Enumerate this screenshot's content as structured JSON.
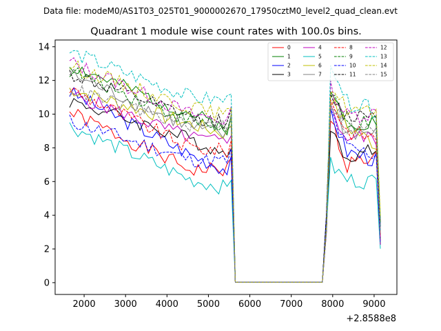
{
  "chart_data": {
    "type": "line",
    "suptitle": "Data file: modeM0/AS1T03_025T01_9000002670_17950cztM0_level2_quad_clean.evt",
    "title": "Quadrant 1 module wise count rates with 100.0s bins.",
    "offset_label": "+2.8588e8",
    "xlabel": "",
    "ylabel": "",
    "xlim": [
      1300,
      9550
    ],
    "ylim": [
      -0.7,
      14.4
    ],
    "xticks": [
      2000,
      3000,
      4000,
      5000,
      6000,
      7000,
      8000,
      9000
    ],
    "yticks": [
      0,
      2,
      4,
      6,
      8,
      10,
      12,
      14
    ],
    "legend_location": "top-right",
    "gap": [
      5650,
      7750
    ],
    "series": [
      {
        "name": "0",
        "color": "#ff0000",
        "dash": false,
        "start": 10.1,
        "mid": 6.7,
        "end": 6.7,
        "peak": 9.8,
        "post": 7.0,
        "last": 7.5,
        "seed": 1
      },
      {
        "name": "1",
        "color": "#008000",
        "dash": false,
        "start": 12.9,
        "mid": 10.0,
        "end": 9.2,
        "peak": 11.4,
        "post": 9.6,
        "last": 9.5,
        "seed": 2
      },
      {
        "name": "2",
        "color": "#0000ff",
        "dash": false,
        "start": 11.3,
        "mid": 7.6,
        "end": 6.7,
        "peak": 10.3,
        "post": 7.8,
        "last": 7.3,
        "seed": 3
      },
      {
        "name": "3",
        "color": "#000000",
        "dash": false,
        "start": 10.8,
        "mid": 8.5,
        "end": 7.6,
        "peak": 8.8,
        "post": 7.6,
        "last": 7.8,
        "seed": 4
      },
      {
        "name": "4",
        "color": "#bf00bf",
        "dash": false,
        "start": 11.2,
        "mid": 8.6,
        "end": 8.3,
        "peak": 10.3,
        "post": 8.6,
        "last": 8.6,
        "seed": 5
      },
      {
        "name": "5",
        "color": "#00bfbf",
        "dash": false,
        "start": 9.3,
        "mid": 6.1,
        "end": 5.6,
        "peak": 7.0,
        "post": 6.1,
        "last": 6.0,
        "seed": 6
      },
      {
        "name": "6",
        "color": "#bfbf00",
        "dash": false,
        "start": 11.5,
        "mid": 9.4,
        "end": 8.8,
        "peak": 10.9,
        "post": 9.3,
        "last": 8.2,
        "seed": 7
      },
      {
        "name": "7",
        "color": "#808080",
        "dash": false,
        "start": 12.4,
        "mid": 9.2,
        "end": 8.7,
        "peak": 10.6,
        "post": 8.9,
        "last": 8.9,
        "seed": 8
      },
      {
        "name": "8",
        "color": "#ff0000",
        "dash": true,
        "start": 11.5,
        "mid": 8.0,
        "end": 7.8,
        "peak": 11.0,
        "post": 9.0,
        "last": 8.6,
        "seed": 9
      },
      {
        "name": "9",
        "color": "#008000",
        "dash": true,
        "start": 12.6,
        "mid": 9.6,
        "end": 9.1,
        "peak": 11.1,
        "post": 9.4,
        "last": 9.4,
        "seed": 10
      },
      {
        "name": "10",
        "color": "#0000ff",
        "dash": true,
        "start": 9.6,
        "mid": 7.3,
        "end": 7.2,
        "peak": 10.2,
        "post": 8.0,
        "last": 7.6,
        "seed": 11
      },
      {
        "name": "11",
        "color": "#000000",
        "dash": true,
        "start": 12.4,
        "mid": 9.8,
        "end": 9.5,
        "peak": 11.0,
        "post": 9.8,
        "last": 10.2,
        "seed": 12
      },
      {
        "name": "12",
        "color": "#bf00bf",
        "dash": true,
        "start": 13.1,
        "mid": 10.0,
        "end": 9.6,
        "peak": 11.6,
        "post": 9.9,
        "last": 10.1,
        "seed": 13
      },
      {
        "name": "13",
        "color": "#00bfbf",
        "dash": true,
        "start": 13.7,
        "mid": 11.0,
        "end": 10.8,
        "peak": 12.4,
        "post": 10.7,
        "last": 10.2,
        "seed": 14
      },
      {
        "name": "14",
        "color": "#bfbf00",
        "dash": true,
        "start": 12.9,
        "mid": 10.4,
        "end": 9.9,
        "peak": 11.7,
        "post": 10.4,
        "last": 10.0,
        "seed": 15
      },
      {
        "name": "15",
        "color": "#808080",
        "dash": true,
        "start": 11.5,
        "mid": 9.3,
        "end": 9.4,
        "peak": 10.8,
        "post": 9.2,
        "last": 9.0,
        "seed": 16
      }
    ],
    "x_start": 1650,
    "x_step": 100,
    "x_end": 9150
  }
}
